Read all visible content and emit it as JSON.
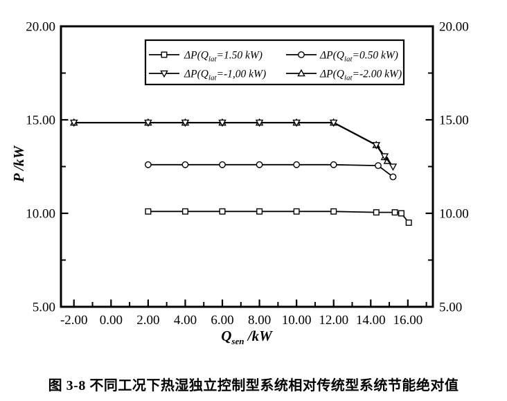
{
  "page": {
    "background": "#ffffff",
    "ink_color": "#000000"
  },
  "caption": "图 3-8 不同工况下热湿独立控制型系统相对传统型系统节能绝对值",
  "chart_data": {
    "type": "line",
    "title": "",
    "xlabel": {
      "var": "Q",
      "sub": "sen",
      "unit": " /kW",
      "plain": "Q_sen /kW"
    },
    "ylabel": {
      "var": "P",
      "sub": "",
      "unit": " /kW",
      "plain": "P /kW"
    },
    "xlim": [
      -2.7,
      17.35
    ],
    "ylim": [
      5,
      20
    ],
    "x_ticks_major": [
      -2,
      0,
      2,
      4,
      6,
      8,
      10,
      12,
      14,
      16
    ],
    "x_tick_labels": [
      "-2.00",
      "0.00",
      "2.00",
      "4.00",
      "6.00",
      "8.00",
      "10.00",
      "12.00",
      "14.00",
      "16.00"
    ],
    "x_ticks_minor": [
      -1,
      1,
      3,
      5,
      7,
      9,
      11,
      13,
      15,
      17
    ],
    "y_ticks_major": [
      5,
      10,
      15,
      20
    ],
    "y_tick_labels": [
      "5.00",
      "10.00",
      "15.00",
      "20.00"
    ],
    "y_ticks_minor": [
      7.5,
      12.5,
      17.5
    ],
    "y_axis_mirrored": true,
    "grid": false,
    "line_color": "#000000",
    "marker_fill": "#ffffff",
    "legend": {
      "position": "top-inside",
      "columns": 2
    },
    "series": [
      {
        "plain_name": "ΔP(Q_lat=1.50 kW)",
        "label_parts": {
          "prefix": "ΔP(Q",
          "sub": "lat",
          "suffix": "=1.50 kW)"
        },
        "marker": "square",
        "x": [
          2,
          4,
          6,
          8,
          10,
          12,
          14.3,
          15.3,
          15.65,
          16.05
        ],
        "y": [
          10.1,
          10.1,
          10.1,
          10.1,
          10.1,
          10.1,
          10.05,
          10.05,
          10.0,
          9.5
        ]
      },
      {
        "plain_name": "ΔP(Q_lat=0.50 kW)",
        "label_parts": {
          "prefix": "ΔP(Q",
          "sub": "lat",
          "suffix": "=0.50 kW)"
        },
        "marker": "circle",
        "x": [
          2,
          4,
          6,
          8,
          10,
          12,
          14.4,
          15.2
        ],
        "y": [
          12.6,
          12.6,
          12.6,
          12.6,
          12.6,
          12.6,
          12.55,
          11.95
        ]
      },
      {
        "plain_name": "ΔP(Q_lat=-1,00 kW)",
        "label_parts": {
          "prefix": "ΔP(Q",
          "sub": "lat",
          "suffix": "=-1,00 kW)"
        },
        "marker": "triangle-down",
        "x": [
          -2,
          2,
          4,
          6,
          8,
          10,
          12,
          14.3,
          14.75,
          15.2
        ],
        "y": [
          14.85,
          14.85,
          14.85,
          14.85,
          14.85,
          14.85,
          14.85,
          13.65,
          13.05,
          12.5
        ]
      },
      {
        "plain_name": "ΔP(Q_lat=-2.00 kW)",
        "label_parts": {
          "prefix": "ΔP(Q",
          "sub": "lat",
          "suffix": "=-2.00 kW)"
        },
        "marker": "triangle-up",
        "x": [
          -2,
          2,
          4,
          6,
          8,
          10,
          12,
          14.3,
          14.75,
          14.9
        ],
        "y": [
          14.85,
          14.85,
          14.85,
          14.85,
          14.85,
          14.85,
          14.85,
          13.65,
          13.0,
          12.8
        ]
      }
    ]
  }
}
